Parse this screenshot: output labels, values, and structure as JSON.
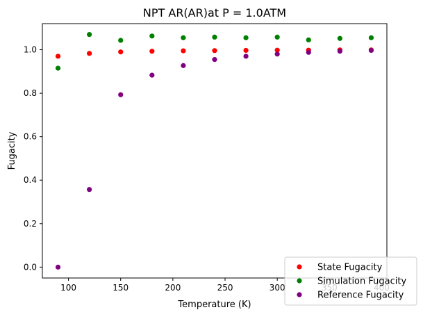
{
  "chart_data": {
    "type": "scatter",
    "title": "NPT AR(AR)at P = 1.0ATM",
    "xlabel": "Temperature (K)",
    "ylabel": "Fugacity",
    "xlim": [
      75,
      405
    ],
    "ylim": [
      -0.05,
      1.12
    ],
    "xticks": [
      100,
      150,
      200,
      250,
      300,
      350,
      400
    ],
    "yticks": [
      0.0,
      0.2,
      0.4,
      0.6,
      0.8,
      1.0
    ],
    "x": [
      90,
      120,
      150,
      180,
      210,
      240,
      270,
      300,
      330,
      360,
      390
    ],
    "grid": false,
    "legend_position": "bottom-right",
    "series": [
      {
        "name": "State Fugacity",
        "color": "#ff0000",
        "values": [
          0.97,
          0.983,
          0.99,
          0.993,
          0.995,
          0.996,
          0.997,
          0.998,
          0.998,
          0.999,
          0.999
        ]
      },
      {
        "name": "Simulation Fugacity",
        "color": "#008000",
        "values": [
          0.915,
          1.07,
          1.043,
          1.063,
          1.055,
          1.058,
          1.055,
          1.058,
          1.045,
          1.052,
          1.055
        ]
      },
      {
        "name": "Reference Fugacity",
        "color": "#800080",
        "values": [
          0.0,
          0.357,
          0.793,
          0.883,
          0.927,
          0.955,
          0.97,
          0.98,
          0.988,
          0.993,
          0.997
        ]
      }
    ]
  }
}
